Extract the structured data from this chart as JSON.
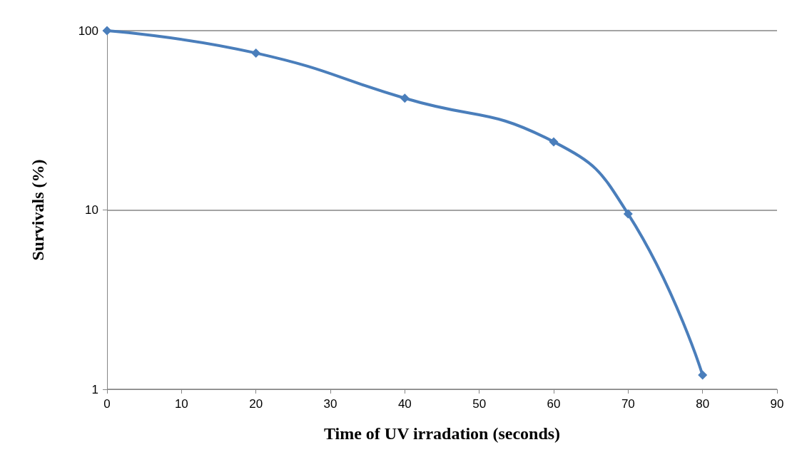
{
  "chart_data": {
    "type": "line",
    "xlabel": "Time of UV irradation (seconds)",
    "ylabel": "Survivals (%)",
    "x": [
      0,
      20,
      40,
      60,
      70,
      80
    ],
    "series": [
      {
        "color": "#4a7ebb",
        "values": [
          100,
          75,
          42,
          24,
          9.5,
          1.2
        ]
      }
    ],
    "xlim": [
      0,
      90
    ],
    "xticks": [
      0,
      10,
      20,
      30,
      40,
      50,
      60,
      70,
      80,
      90
    ],
    "ylim": [
      1,
      100
    ],
    "yticks": [
      1,
      10,
      100
    ],
    "log": "y",
    "grid": "y",
    "marker": "diamond",
    "line_style": "solid"
  }
}
